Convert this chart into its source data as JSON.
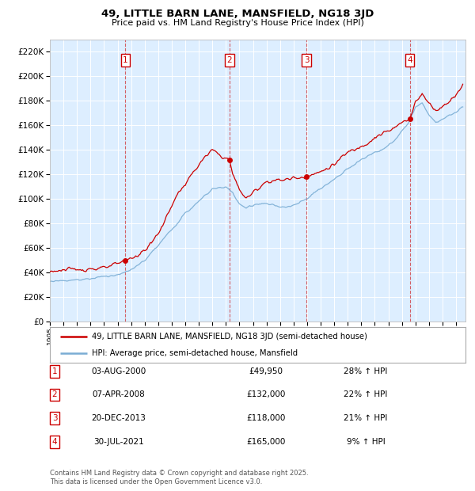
{
  "title": "49, LITTLE BARN LANE, MANSFIELD, NG18 3JD",
  "subtitle": "Price paid vs. HM Land Registry's House Price Index (HPI)",
  "property_label": "49, LITTLE BARN LANE, MANSFIELD, NG18 3JD (semi-detached house)",
  "hpi_label": "HPI: Average price, semi-detached house, Mansfield",
  "property_color": "#cc0000",
  "hpi_color": "#7aadd4",
  "plot_bg_color": "#ddeeff",
  "ylim": [
    0,
    230000
  ],
  "yticks": [
    0,
    20000,
    40000,
    60000,
    80000,
    100000,
    120000,
    140000,
    160000,
    180000,
    200000,
    220000
  ],
  "xlim_start": 1995.0,
  "xlim_end": 2025.7,
  "sales": [
    {
      "num": 1,
      "date": "03-AUG-2000",
      "price": 49950,
      "pct": "28%",
      "x_year": 2000.58
    },
    {
      "num": 2,
      "date": "07-APR-2008",
      "price": 132000,
      "pct": "22%",
      "x_year": 2008.27
    },
    {
      "num": 3,
      "date": "20-DEC-2013",
      "price": 118000,
      "pct": "21%",
      "x_year": 2013.97
    },
    {
      "num": 4,
      "date": "30-JUL-2021",
      "price": 165000,
      "pct": "9%",
      "x_year": 2021.58
    }
  ],
  "footer": "Contains HM Land Registry data © Crown copyright and database right 2025.\nThis data is licensed under the Open Government Licence v3.0.",
  "prop_base_x": [
    1995.0,
    1996.0,
    1997.0,
    1998.0,
    1999.0,
    2000.0,
    2000.58,
    2001.0,
    2001.5,
    2002.0,
    2002.5,
    2003.0,
    2003.5,
    2004.0,
    2004.5,
    2005.0,
    2005.5,
    2006.0,
    2006.5,
    2007.0,
    2007.5,
    2008.0,
    2008.27,
    2008.5,
    2009.0,
    2009.5,
    2010.0,
    2010.5,
    2011.0,
    2011.5,
    2012.0,
    2012.5,
    2013.0,
    2013.5,
    2013.97,
    2014.0,
    2014.5,
    2015.0,
    2015.5,
    2016.0,
    2016.5,
    2017.0,
    2017.5,
    2018.0,
    2018.5,
    2019.0,
    2019.5,
    2020.0,
    2020.5,
    2021.0,
    2021.58,
    2022.0,
    2022.5,
    2023.0,
    2023.5,
    2024.0,
    2024.5,
    2025.0,
    2025.5
  ],
  "prop_base_y": [
    41000,
    42000,
    42500,
    43000,
    43500,
    47000,
    49950,
    52000,
    54000,
    58000,
    64000,
    72000,
    82000,
    95000,
    105000,
    112000,
    120000,
    128000,
    134000,
    140000,
    136000,
    133000,
    132000,
    120000,
    108000,
    100000,
    105000,
    110000,
    114000,
    115000,
    115000,
    116000,
    117000,
    117500,
    118000,
    118500,
    120000,
    122000,
    125000,
    128000,
    133000,
    138000,
    140000,
    143000,
    146000,
    150000,
    153000,
    155000,
    158000,
    162000,
    165000,
    180000,
    185000,
    178000,
    172000,
    175000,
    180000,
    185000,
    192000
  ],
  "hpi_base_x": [
    1995.0,
    1996.0,
    1997.0,
    1998.0,
    1999.0,
    2000.0,
    2001.0,
    2002.0,
    2003.0,
    2004.0,
    2005.0,
    2006.0,
    2007.0,
    2008.0,
    2008.5,
    2009.0,
    2009.5,
    2010.0,
    2010.5,
    2011.0,
    2011.5,
    2012.0,
    2012.5,
    2013.0,
    2013.5,
    2014.0,
    2014.5,
    2015.0,
    2015.5,
    2016.0,
    2016.5,
    2017.0,
    2017.5,
    2018.0,
    2018.5,
    2019.0,
    2019.5,
    2020.0,
    2020.5,
    2021.0,
    2021.5,
    2022.0,
    2022.5,
    2023.0,
    2023.5,
    2024.0,
    2024.5,
    2025.0,
    2025.5
  ],
  "hpi_base_y": [
    33000,
    33500,
    34000,
    35000,
    37000,
    38000,
    42000,
    50000,
    62000,
    75000,
    88000,
    98000,
    108000,
    110000,
    105000,
    95000,
    93000,
    95000,
    96000,
    96000,
    95000,
    93000,
    93000,
    95000,
    97000,
    100000,
    105000,
    108000,
    112000,
    116000,
    120000,
    125000,
    128000,
    132000,
    135000,
    138000,
    140000,
    143000,
    148000,
    155000,
    162000,
    175000,
    178000,
    168000,
    162000,
    165000,
    168000,
    170000,
    175000
  ]
}
